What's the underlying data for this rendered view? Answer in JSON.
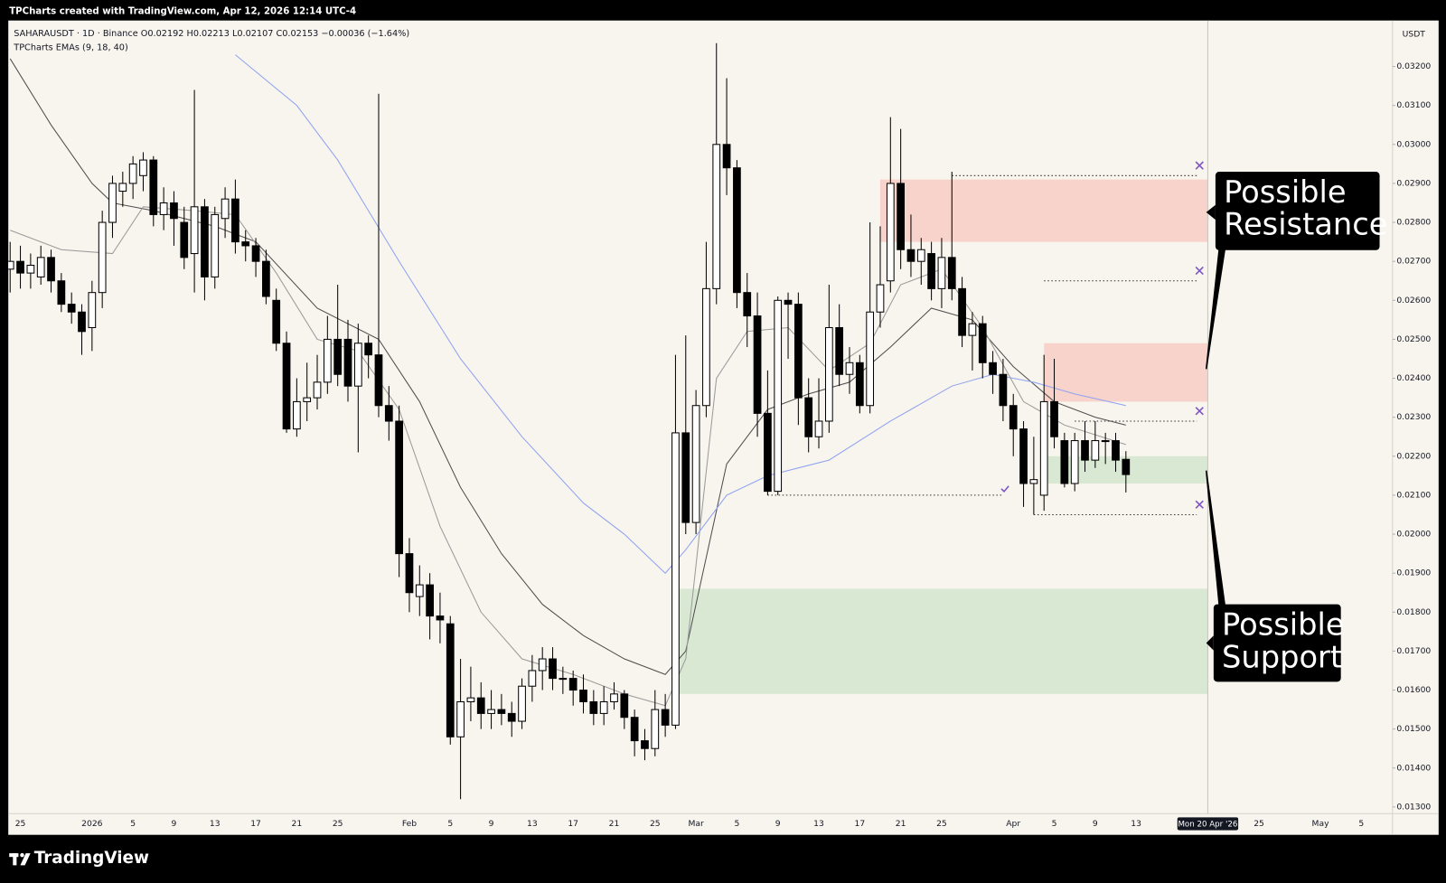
{
  "header": {
    "watermark": "TPCharts created with TradingView.com, Apr 12, 2026 12:14 UTC-4",
    "legend": "SAHARAUSDT · 1D · Binance   O0.02192  H0.02213  L0.02107  C0.02153  −0.00036 (−1.64%)",
    "indicator": "TPCharts EMAs (9, 18, 40)",
    "currency": "USDT"
  },
  "footer": {
    "brand": "TradingView"
  },
  "chart_data": {
    "type": "candlestick",
    "open": [
      0.0268,
      0.027,
      0.0267,
      0.0266,
      0.0271,
      0.0265,
      0.0259,
      0.0257,
      0.0253,
      0.0262,
      0.028,
      0.0288,
      0.029,
      0.0292,
      0.0296,
      0.0282,
      0.0285,
      0.028,
      0.0272,
      0.0284,
      0.0266,
      0.0281,
      0.0286,
      0.0275,
      0.0274,
      0.027,
      0.026,
      0.0249,
      0.0227,
      0.0234,
      0.0235,
      0.0239,
      0.025,
      0.025,
      0.0238,
      0.0249,
      0.0246,
      0.0233,
      0.0229,
      0.0195,
      0.0184,
      0.0187,
      0.0179,
      0.0177,
      0.0148,
      0.0157,
      0.0158,
      0.0154,
      0.0155,
      0.0154,
      0.0152,
      0.0161,
      0.0165,
      0.0168,
      0.0163,
      0.0163,
      0.016,
      0.0157,
      0.0154,
      0.0157,
      0.0159,
      0.0153,
      0.0147,
      0.0145,
      0.0155,
      0.0151,
      0.0226,
      0.0203,
      0.0233,
      0.0263,
      0.03,
      0.0294,
      0.0262,
      0.0256,
      0.0231,
      0.0211,
      0.026,
      0.0259,
      0.0235,
      0.0225,
      0.0229,
      0.0253,
      0.0241,
      0.0244,
      0.0233,
      0.0257,
      0.0265,
      0.029,
      0.0273,
      0.027,
      0.0272,
      0.0263,
      0.0271,
      0.0263,
      0.0251,
      0.0254,
      0.0244,
      0.0241,
      0.0233,
      0.0227,
      0.0213,
      0.021,
      0.0234,
      0.0224,
      0.0213,
      0.0224,
      0.0219,
      0.0224,
      0.0224,
      0.02192
    ],
    "high": [
      0.0275,
      0.0274,
      0.0272,
      0.0274,
      0.0273,
      0.0267,
      0.0262,
      0.0259,
      0.0265,
      0.0283,
      0.0292,
      0.0293,
      0.0297,
      0.0298,
      0.0297,
      0.0289,
      0.0288,
      0.0284,
      0.0314,
      0.0286,
      0.0284,
      0.0289,
      0.0291,
      0.0278,
      0.0276,
      0.0273,
      0.0263,
      0.0252,
      0.024,
      0.0244,
      0.0246,
      0.0256,
      0.0264,
      0.0255,
      0.0254,
      0.0251,
      0.0313,
      0.0238,
      0.0233,
      0.0199,
      0.0192,
      0.019,
      0.0185,
      0.0179,
      0.0168,
      0.0166,
      0.0162,
      0.016,
      0.0159,
      0.0157,
      0.0163,
      0.0169,
      0.0171,
      0.0171,
      0.0166,
      0.0165,
      0.0164,
      0.016,
      0.0161,
      0.0162,
      0.016,
      0.0155,
      0.015,
      0.016,
      0.0159,
      0.0246,
      0.0251,
      0.0237,
      0.0275,
      0.0326,
      0.0317,
      0.0296,
      0.0267,
      0.0262,
      0.0242,
      0.0261,
      0.0262,
      0.0262,
      0.024,
      0.024,
      0.0264,
      0.0259,
      0.0248,
      0.0246,
      0.028,
      0.0279,
      0.0307,
      0.0304,
      0.0282,
      0.0276,
      0.0275,
      0.0276,
      0.0293,
      0.0266,
      0.0257,
      0.0256,
      0.0247,
      0.0245,
      0.0236,
      0.0229,
      0.0225,
      0.0246,
      0.0245,
      0.0226,
      0.0226,
      0.0229,
      0.0229,
      0.0226,
      0.0226,
      0.02213
    ],
    "low": [
      0.0262,
      0.0263,
      0.0263,
      0.0264,
      0.0262,
      0.0257,
      0.0254,
      0.0246,
      0.0247,
      0.0258,
      0.0276,
      0.0284,
      0.0286,
      0.0288,
      0.0279,
      0.0278,
      0.0274,
      0.0268,
      0.0262,
      0.026,
      0.0263,
      0.0276,
      0.0272,
      0.027,
      0.0266,
      0.0259,
      0.0247,
      0.0226,
      0.0225,
      0.0229,
      0.0232,
      0.0236,
      0.0238,
      0.0234,
      0.0221,
      0.024,
      0.023,
      0.0224,
      0.0189,
      0.018,
      0.0179,
      0.0173,
      0.0172,
      0.0146,
      0.0132,
      0.0152,
      0.015,
      0.015,
      0.0151,
      0.0148,
      0.015,
      0.0157,
      0.016,
      0.016,
      0.0159,
      0.0156,
      0.0154,
      0.0151,
      0.0151,
      0.0155,
      0.015,
      0.0143,
      0.0142,
      0.0143,
      0.0148,
      0.015,
      0.02,
      0.02,
      0.023,
      0.0259,
      0.0287,
      0.0258,
      0.0248,
      0.0225,
      0.021,
      0.021,
      0.0245,
      0.0228,
      0.0221,
      0.0222,
      0.0226,
      0.0238,
      0.0236,
      0.0231,
      0.0231,
      0.0253,
      0.0262,
      0.0268,
      0.0266,
      0.0264,
      0.026,
      0.0258,
      0.026,
      0.0248,
      0.0242,
      0.024,
      0.0236,
      0.0229,
      0.022,
      0.0207,
      0.0205,
      0.0206,
      0.0222,
      0.0212,
      0.0211,
      0.0216,
      0.0217,
      0.0218,
      0.0216,
      0.02107
    ],
    "close": [
      0.027,
      0.0267,
      0.0269,
      0.0271,
      0.0265,
      0.0259,
      0.0257,
      0.0252,
      0.0262,
      0.028,
      0.029,
      0.029,
      0.0295,
      0.0296,
      0.0282,
      0.0285,
      0.0281,
      0.0271,
      0.0284,
      0.0266,
      0.0282,
      0.0286,
      0.0275,
      0.0274,
      0.027,
      0.0261,
      0.0249,
      0.0227,
      0.0234,
      0.0235,
      0.0239,
      0.025,
      0.0241,
      0.0238,
      0.0249,
      0.0246,
      0.0233,
      0.0229,
      0.0195,
      0.0185,
      0.0187,
      0.0179,
      0.0178,
      0.0148,
      0.0157,
      0.0158,
      0.0154,
      0.0155,
      0.0154,
      0.0152,
      0.0161,
      0.0165,
      0.0168,
      0.0163,
      0.0163,
      0.016,
      0.0157,
      0.0154,
      0.0157,
      0.0159,
      0.0153,
      0.0147,
      0.0145,
      0.0155,
      0.0151,
      0.0226,
      0.0203,
      0.0233,
      0.0263,
      0.03,
      0.0294,
      0.0262,
      0.0256,
      0.0231,
      0.0211,
      0.026,
      0.0259,
      0.0235,
      0.0225,
      0.0229,
      0.0253,
      0.0241,
      0.0244,
      0.0233,
      0.0257,
      0.0264,
      0.029,
      0.0273,
      0.027,
      0.0273,
      0.0263,
      0.0271,
      0.0263,
      0.0251,
      0.0254,
      0.0244,
      0.0241,
      0.0233,
      0.0227,
      0.0213,
      0.0214,
      0.0234,
      0.0225,
      0.0213,
      0.0224,
      0.0219,
      0.0224,
      0.0224,
      0.0219,
      0.02153
    ],
    "up_color": "#ffffff",
    "down_color": "#000000",
    "lines": [
      {
        "color": "#4d4d4d",
        "x": [
          0,
          4,
          8,
          10,
          14,
          20,
          24,
          30,
          36,
          40,
          44,
          48,
          52,
          56,
          60,
          64,
          66,
          70,
          74,
          78,
          82,
          86,
          90,
          94,
          98,
          102,
          106,
          109
        ],
        "values": [
          0.0322,
          0.0305,
          0.029,
          0.0285,
          0.0283,
          0.0279,
          0.0275,
          0.0258,
          0.025,
          0.0234,
          0.0212,
          0.0195,
          0.0182,
          0.0174,
          0.0168,
          0.0164,
          0.017,
          0.0218,
          0.0232,
          0.0236,
          0.0239,
          0.0248,
          0.0258,
          0.0255,
          0.0243,
          0.0234,
          0.023,
          0.0228
        ]
      },
      {
        "color": "#9a9a9a",
        "x": [
          0,
          5,
          10,
          13,
          18,
          22,
          26,
          30,
          34,
          38,
          42,
          46,
          50,
          55,
          60,
          64,
          66,
          69,
          72,
          76,
          80,
          84,
          87,
          91,
          95,
          99,
          103,
          109
        ],
        "values": [
          0.0278,
          0.0273,
          0.0272,
          0.0284,
          0.0283,
          0.0282,
          0.0267,
          0.025,
          0.0247,
          0.0232,
          0.0202,
          0.018,
          0.0168,
          0.0164,
          0.0159,
          0.0156,
          0.0168,
          0.024,
          0.0252,
          0.0253,
          0.0242,
          0.0249,
          0.0264,
          0.0268,
          0.0253,
          0.0234,
          0.0228,
          0.0223
        ]
      },
      {
        "color": "#8ea2f0",
        "x": [
          22,
          28,
          32,
          38,
          44,
          50,
          56,
          60,
          64,
          66,
          70,
          74,
          80,
          86,
          92,
          96,
          100,
          104,
          109
        ],
        "values": [
          0.0323,
          0.031,
          0.0296,
          0.027,
          0.0245,
          0.0225,
          0.0208,
          0.02,
          0.019,
          0.0196,
          0.021,
          0.0215,
          0.0219,
          0.0229,
          0.0238,
          0.0241,
          0.0239,
          0.0236,
          0.0233
        ]
      }
    ],
    "zones": [
      {
        "start": 85,
        "end": 117,
        "top": 0.0291,
        "bottom": 0.0275,
        "color": "#f7cfc7"
      },
      {
        "start": 101,
        "end": 117,
        "top": 0.0249,
        "bottom": 0.0234,
        "color": "#f7cfc7"
      },
      {
        "start": 101,
        "end": 117,
        "top": 0.022,
        "bottom": 0.0213,
        "color": "#d5e7cf"
      },
      {
        "start": 65,
        "end": 117,
        "top": 0.0186,
        "bottom": 0.0159,
        "color": "#d5e7cf"
      }
    ],
    "levels": [
      {
        "start": 92,
        "end": 117,
        "value": 0.0292,
        "marker": "x"
      },
      {
        "start": 101,
        "end": 117,
        "value": 0.0265,
        "marker": "x"
      },
      {
        "start": 104,
        "end": 117,
        "value": 0.0229,
        "marker": "x"
      },
      {
        "start": 100,
        "end": 117,
        "value": 0.0205,
        "marker": "x"
      },
      {
        "start": 74,
        "end": 98,
        "value": 0.021,
        "marker": "check"
      }
    ],
    "annotations": [
      {
        "lines": [
          "Possible",
          "Resistance"
        ]
      },
      {
        "lines": [
          "Possible",
          "Support"
        ]
      }
    ],
    "crosshair": {
      "value": 117,
      "label": "Mon 20 Apr '26"
    },
    "xlim": [
      0,
      135
    ],
    "xticks": [
      {
        "value": 1,
        "label": "25"
      },
      {
        "value": 8,
        "label": "2026"
      },
      {
        "value": 12,
        "label": "5"
      },
      {
        "value": 16,
        "label": "9"
      },
      {
        "value": 20,
        "label": "13"
      },
      {
        "value": 24,
        "label": "17"
      },
      {
        "value": 28,
        "label": "21"
      },
      {
        "value": 32,
        "label": "25"
      },
      {
        "value": 39,
        "label": "Feb"
      },
      {
        "value": 43,
        "label": "5"
      },
      {
        "value": 47,
        "label": "9"
      },
      {
        "value": 51,
        "label": "13"
      },
      {
        "value": 55,
        "label": "17"
      },
      {
        "value": 59,
        "label": "21"
      },
      {
        "value": 63,
        "label": "25"
      },
      {
        "value": 67,
        "label": "Mar"
      },
      {
        "value": 71,
        "label": "5"
      },
      {
        "value": 75,
        "label": "9"
      },
      {
        "value": 79,
        "label": "13"
      },
      {
        "value": 83,
        "label": "17"
      },
      {
        "value": 87,
        "label": "21"
      },
      {
        "value": 91,
        "label": "25"
      },
      {
        "value": 98,
        "label": "Apr"
      },
      {
        "value": 102,
        "label": "5"
      },
      {
        "value": 106,
        "label": "9"
      },
      {
        "value": 110,
        "label": "13"
      },
      {
        "value": 122,
        "label": "25"
      },
      {
        "value": 128,
        "label": "May"
      },
      {
        "value": 132,
        "label": "5"
      }
    ],
    "ylim": [
      0.01283,
      0.03318
    ],
    "yticks": [
      {
        "value": 0.013,
        "label": "0.01300"
      },
      {
        "value": 0.014,
        "label": "0.01400"
      },
      {
        "value": 0.015,
        "label": "0.01500"
      },
      {
        "value": 0.016,
        "label": "0.01600"
      },
      {
        "value": 0.017,
        "label": "0.01700"
      },
      {
        "value": 0.018,
        "label": "0.01800"
      },
      {
        "value": 0.019,
        "label": "0.01900"
      },
      {
        "value": 0.02,
        "label": "0.02000"
      },
      {
        "value": 0.021,
        "label": "0.02100"
      },
      {
        "value": 0.022,
        "label": "0.02200"
      },
      {
        "value": 0.023,
        "label": "0.02300"
      },
      {
        "value": 0.024,
        "label": "0.02400"
      },
      {
        "value": 0.025,
        "label": "0.02500"
      },
      {
        "value": 0.026,
        "label": "0.02600"
      },
      {
        "value": 0.027,
        "label": "0.02700"
      },
      {
        "value": 0.028,
        "label": "0.02800"
      },
      {
        "value": 0.029,
        "label": "0.02900"
      },
      {
        "value": 0.03,
        "label": "0.03000"
      },
      {
        "value": 0.031,
        "label": "0.03100"
      },
      {
        "value": 0.032,
        "label": "0.03200"
      }
    ],
    "grid": false
  }
}
